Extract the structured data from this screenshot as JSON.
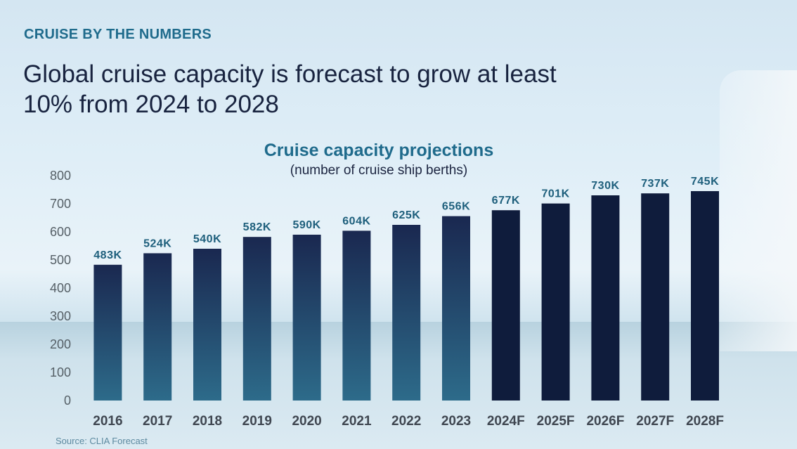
{
  "header": {
    "kicker": "CRUISE BY THE NUMBERS",
    "headline": "Global cruise capacity is forecast to grow at least 10% from 2024 to 2028"
  },
  "footer": {
    "source": "Source:  CLIA Forecast"
  },
  "colors": {
    "actual_bar_top": "#1a2850",
    "actual_bar_bottom": "#2d6b8a",
    "forecast_bar": "#0f1c3c",
    "accent": "#1f6b8c"
  },
  "chart_data": {
    "type": "bar",
    "title": "Cruise capacity projections",
    "subtitle": "(number of cruise ship berths)",
    "xlabel": "",
    "ylabel": "",
    "ylim": [
      0,
      800
    ],
    "yticks": [
      0,
      100,
      200,
      300,
      400,
      500,
      600,
      700,
      800
    ],
    "grid": false,
    "categories": [
      "2016",
      "2017",
      "2018",
      "2019",
      "2020",
      "2021",
      "2022",
      "2023",
      "2024F",
      "2025F",
      "2026F",
      "2027F",
      "2028F"
    ],
    "values": [
      483,
      524,
      540,
      582,
      590,
      604,
      625,
      656,
      677,
      701,
      730,
      737,
      745
    ],
    "data_labels": [
      "483K",
      "524K",
      "540K",
      "582K",
      "590K",
      "604K",
      "625K",
      "656K",
      "677K",
      "701K",
      "730K",
      "737K",
      "745K"
    ],
    "forecast": [
      false,
      false,
      false,
      false,
      false,
      false,
      false,
      false,
      true,
      true,
      true,
      true,
      true
    ]
  }
}
